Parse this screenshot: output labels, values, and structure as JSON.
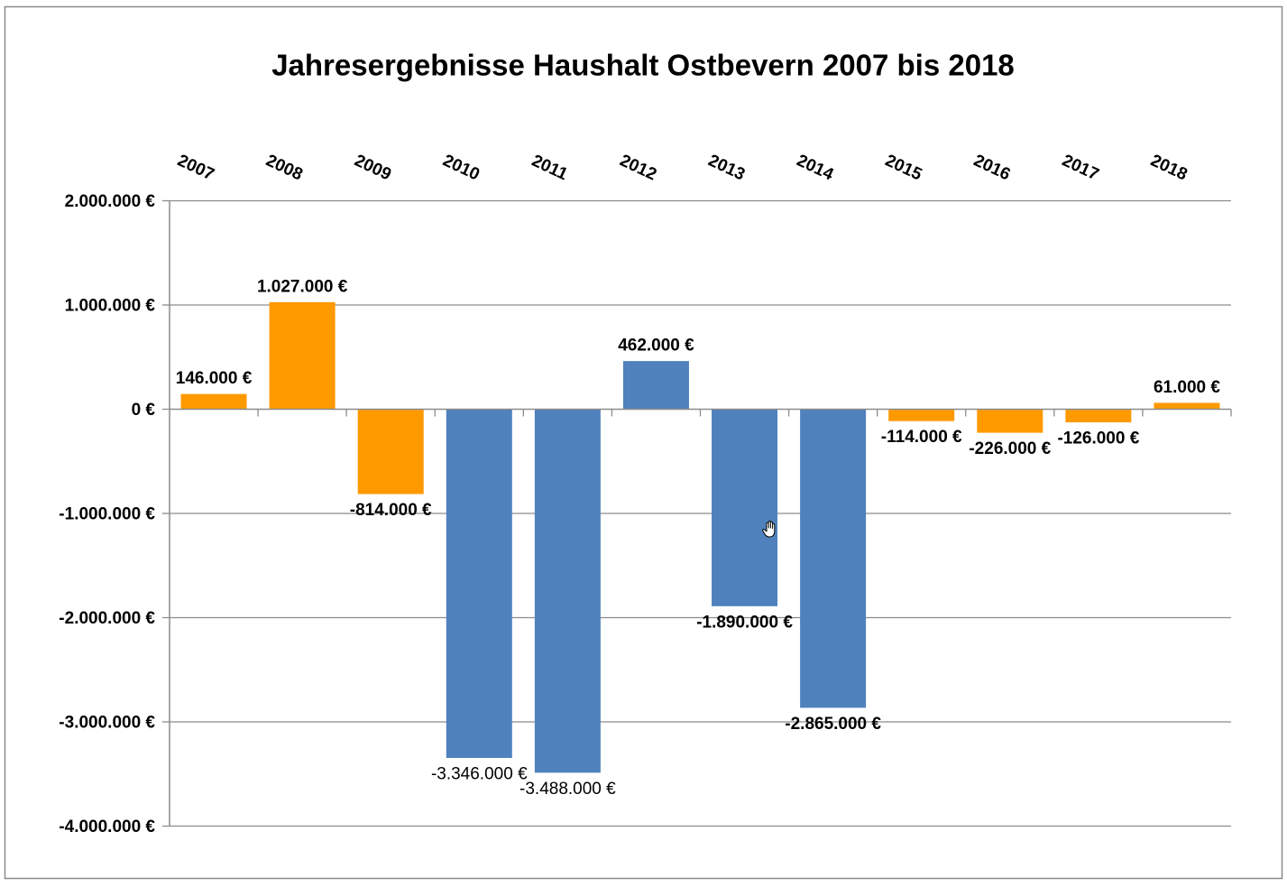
{
  "chart_data": {
    "type": "bar",
    "title": "Jahresergebnisse Haushalt Ostbevern 2007 bis 2018",
    "categories": [
      "2007",
      "2008",
      "2009",
      "2010",
      "2011",
      "2012",
      "2013",
      "2014",
      "2015",
      "2016",
      "2017",
      "2018"
    ],
    "values": [
      146000,
      1027000,
      -814000,
      -3346000,
      -3488000,
      462000,
      -1890000,
      -2865000,
      -114000,
      -226000,
      -126000,
      61000
    ],
    "data_labels": [
      "146.000 €",
      "1.027.000 €",
      "-814.000 €",
      "-3.346.000 €",
      "-3.488.000 €",
      "462.000 €",
      "-1.890.000 €",
      "-2.865.000 €",
      "-114.000 €",
      "-226.000 €",
      "-126.000 €",
      "61.000 €"
    ],
    "bar_colors": [
      "#FF9900",
      "#FF9900",
      "#FF9900",
      "#4F81BD",
      "#4F81BD",
      "#4F81BD",
      "#4F81BD",
      "#4F81BD",
      "#FF9900",
      "#FF9900",
      "#FF9900",
      "#FF9900"
    ],
    "ylim": [
      -4000000,
      2000000
    ],
    "yticks": [
      2000000,
      1000000,
      0,
      -1000000,
      -2000000,
      -3000000,
      -4000000
    ],
    "ytick_labels": [
      "2.000.000 €",
      "1.000.000 €",
      "0 €",
      "-1.000.000 €",
      "-2.000.000 €",
      "-3.000.000 €",
      "-4.000.000 €"
    ],
    "grid": true,
    "show_legend": false
  },
  "pointer": {
    "icon": "hand-cursor-icon"
  }
}
